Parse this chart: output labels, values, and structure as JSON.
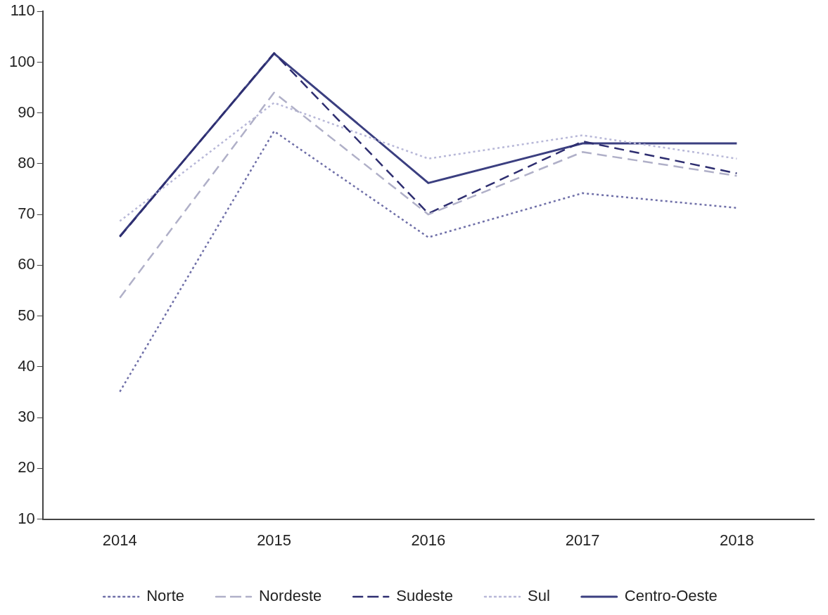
{
  "chart_data": {
    "type": "line",
    "categories": [
      "2014",
      "2015",
      "2016",
      "2017",
      "2018"
    ],
    "series": [
      {
        "name": "Norte",
        "color": "#6f6fa8",
        "line_style": "dotted",
        "values": [
          35.1,
          86.4,
          65.5,
          74.2,
          71.3
        ]
      },
      {
        "name": "Nordeste",
        "color": "#b0b0c8",
        "line_style": "dashed",
        "values": [
          53.6,
          94,
          70,
          82.3,
          77.6
        ]
      },
      {
        "name": "Sudeste",
        "color": "#2e2e70",
        "line_style": "dashed",
        "values": [
          65.6,
          101.8,
          70.2,
          84.4,
          78.1
        ]
      },
      {
        "name": "Sul",
        "color": "#b8b8d8",
        "line_style": "dotted",
        "values": [
          68.7,
          92,
          81,
          85.6,
          81
        ]
      },
      {
        "name": "Centro-Oeste",
        "color": "#3b3f80",
        "line_style": "solid",
        "values": [
          65.7,
          101.7,
          76.2,
          84,
          84
        ]
      }
    ],
    "ylim": [
      10,
      110
    ],
    "yticks": [
      10,
      20,
      30,
      40,
      50,
      60,
      70,
      80,
      90,
      100,
      110
    ],
    "grid": false,
    "legend": "bottom",
    "marker": "none"
  }
}
